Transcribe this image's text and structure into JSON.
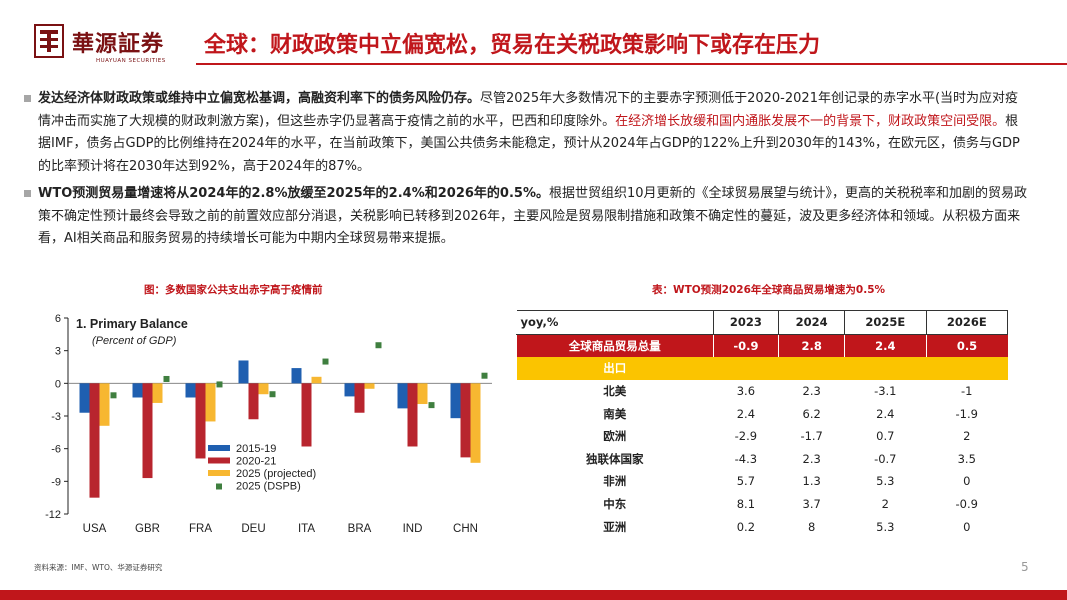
{
  "header": {
    "brand_name": "華源証券",
    "brand_sub": "HUAYUAN SECURITIES",
    "title": "全球：财政政策中立偏宽松，贸易在关税政策影响下或存在压力"
  },
  "paragraphs": [
    {
      "bold": "发达经济体财政政策或维持中立偏宽松基调，高融资利率下的债务风险仍存。",
      "text1": "尽管2025年大多数情况下的主要赤字预测低于2020-2021年创记录的赤字水平(当时为应对疫情冲击而实施了大规模的财政刺激方案)，但这些赤字仍显著高于疫情之前的水平，巴西和印度除外。",
      "red": "在经济增长放缓和国内通胀发展不一的背景下，财政政策空间受限。",
      "text2": "根据IMF，债务占GDP的比例维持在2024年的水平，在当前政策下，美国公共债务未能稳定，预计从2024年占GDP的122%上升到2030年的143%，在欧元区，债务与GDP的比率预计将在2030年达到92%，高于2024年的87%。"
    },
    {
      "bold": "WTO预测贸易量增速将从2024年的2.8%放缓至2025年的2.4%和2026年的0.5%。",
      "text1": "根据世贸组织10月更新的《全球贸易展望与统计》，更高的关税税率和加剧的贸易政策不确定性预计最终会导致之前的前置效应部分消退，关税影响已转移到2026年，主要风险是贸易限制措施和政策不确定性的蔓延，波及更多经济体和领域。从积极方面来看，AI相关商品和服务贸易的持续增长可能为中期内全球贸易带来提振。",
      "red": "",
      "text2": ""
    }
  ],
  "chart_caption": "图：多数国家公共支出赤字高于疫情前",
  "table_caption": "表：WTO预测2026年全球商品贸易增速为0.5%",
  "chart_data": [
    {
      "type": "bar",
      "title": "1. Primary Balance",
      "subtitle": "(Percent of GDP)",
      "categories": [
        "USA",
        "GBR",
        "FRA",
        "DEU",
        "ITA",
        "BRA",
        "IND",
        "CHN"
      ],
      "series": [
        {
          "name": "2015-19",
          "color": "#1f5fb0",
          "values": [
            -2.7,
            -1.3,
            -1.3,
            2.1,
            1.4,
            -1.2,
            -2.3,
            -3.2
          ]
        },
        {
          "name": "2020-21",
          "color": "#b8252e",
          "values": [
            -10.5,
            -8.7,
            -6.9,
            -3.3,
            -5.8,
            -2.7,
            -5.8,
            -6.8
          ]
        },
        {
          "name": "2025 (projected)",
          "color": "#f7b731",
          "values": [
            -3.9,
            -1.8,
            -3.5,
            -1.0,
            0.6,
            -0.5,
            -1.9,
            -7.3
          ]
        },
        {
          "name": "2025 (DSPB)",
          "color": "#3f7f3f",
          "marker": "square",
          "values": [
            -1.1,
            0.4,
            -0.1,
            -1.0,
            2.0,
            3.5,
            -2.0,
            0.7
          ]
        }
      ],
      "ylim": [
        -12,
        6
      ],
      "yticks": [
        -12,
        -9,
        -6,
        -3,
        0,
        3,
        6
      ],
      "legend": "bottom-left",
      "grid": false
    },
    {
      "type": "table",
      "header": [
        "yoy,%",
        "2023",
        "2024",
        "2025E",
        "2026E"
      ],
      "total": [
        "全球商品贸易总量",
        "-0.9",
        "2.8",
        "2.4",
        "0.5"
      ],
      "section": "出口",
      "rows": [
        [
          "北美",
          "3.6",
          "2.3",
          "-3.1",
          "-1"
        ],
        [
          "南美",
          "2.4",
          "6.2",
          "2.4",
          "-1.9"
        ],
        [
          "欧洲",
          "-2.9",
          "-1.7",
          "0.7",
          "2"
        ],
        [
          "独联体国家",
          "-4.3",
          "2.3",
          "-0.7",
          "3.5"
        ],
        [
          "非洲",
          "5.7",
          "1.3",
          "5.3",
          "0"
        ],
        [
          "中东",
          "8.1",
          "3.7",
          "2",
          "-0.9"
        ],
        [
          "亚洲",
          "0.2",
          "8",
          "5.3",
          "0"
        ]
      ]
    }
  ],
  "footer": {
    "source": "资料来源：IMF、WTO、华源证券研究",
    "page": "5"
  },
  "colors": {
    "accent": "#c0161b",
    "gold": "#fbc400"
  }
}
